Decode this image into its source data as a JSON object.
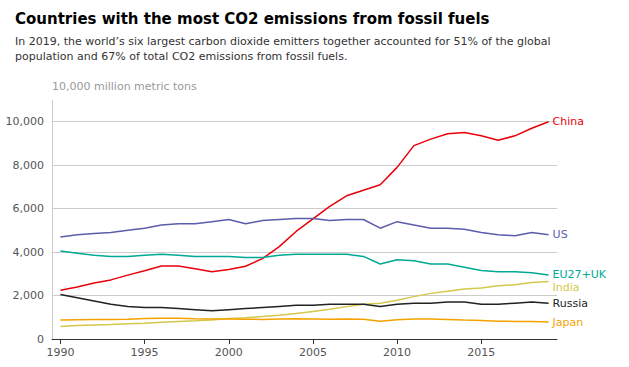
{
  "chart_data": {
    "type": "line",
    "title": "Countries with the most CO2 emissions from fossil fuels",
    "subtitle": "In 2019, the world’s six largest carbon dioxide emitters together accounted for 51% of the global\npopulation and 67% of total CO2 emissions from fossil fuels.",
    "ylabel": "10,000 million metric tons",
    "x": [
      1990,
      1991,
      1992,
      1993,
      1994,
      1995,
      1996,
      1997,
      1998,
      1999,
      2000,
      2001,
      2002,
      2003,
      2004,
      2005,
      2006,
      2007,
      2008,
      2009,
      2010,
      2011,
      2012,
      2013,
      2014,
      2015,
      2016,
      2017,
      2018,
      2019
    ],
    "series": [
      {
        "name": "China",
        "color": "#e8000b",
        "values": [
          2244,
          2390,
          2580,
          2720,
          2940,
          3140,
          3360,
          3360,
          3230,
          3100,
          3200,
          3350,
          3700,
          4250,
          4950,
          5530,
          6100,
          6590,
          6850,
          7100,
          7900,
          8900,
          9200,
          9450,
          9500,
          9350,
          9150,
          9350,
          9700,
          10000
        ]
      },
      {
        "name": "US",
        "color": "#5c5cad",
        "values": [
          4700,
          4800,
          4850,
          4900,
          5000,
          5100,
          5250,
          5300,
          5300,
          5400,
          5500,
          5300,
          5450,
          5500,
          5550,
          5550,
          5450,
          5500,
          5500,
          5100,
          5400,
          5250,
          5100,
          5100,
          5050,
          4900,
          4800,
          4750,
          4900,
          4800
        ]
      },
      {
        "name": "EU27+UK",
        "color": "#00a896",
        "values": [
          4050,
          3950,
          3850,
          3800,
          3800,
          3850,
          3900,
          3850,
          3800,
          3800,
          3800,
          3750,
          3750,
          3850,
          3900,
          3900,
          3900,
          3900,
          3800,
          3450,
          3650,
          3600,
          3450,
          3450,
          3300,
          3150,
          3100,
          3100,
          3050,
          2950
        ]
      },
      {
        "name": "India",
        "color": "#d4c84a",
        "values": [
          580,
          620,
          650,
          670,
          700,
          730,
          770,
          810,
          840,
          880,
          940,
          980,
          1030,
          1090,
          1170,
          1270,
          1370,
          1490,
          1600,
          1650,
          1780,
          1950,
          2100,
          2200,
          2300,
          2350,
          2450,
          2500,
          2600,
          2650
        ]
      },
      {
        "name": "Russia",
        "color": "#222222",
        "values": [
          2050,
          1900,
          1750,
          1600,
          1500,
          1450,
          1450,
          1400,
          1350,
          1300,
          1350,
          1400,
          1450,
          1500,
          1550,
          1550,
          1600,
          1600,
          1600,
          1500,
          1600,
          1650,
          1650,
          1700,
          1700,
          1600,
          1600,
          1650,
          1700,
          1650
        ]
      },
      {
        "name": "Japan",
        "color": "#f4a200",
        "values": [
          870,
          890,
          900,
          900,
          910,
          940,
          950,
          960,
          930,
          920,
          920,
          910,
          900,
          920,
          930,
          920,
          910,
          920,
          910,
          820,
          890,
          920,
          920,
          900,
          870,
          850,
          820,
          810,
          800,
          780
        ]
      }
    ],
    "xlim": [
      1989.5,
      2019.5
    ],
    "xticks": [
      1990,
      1995,
      2000,
      2005,
      2010,
      2015
    ],
    "ylim": [
      0,
      11000
    ],
    "yticks": [
      0,
      {
        "value": 2000,
        "label": "2,000"
      },
      {
        "value": 4000,
        "label": "4,000"
      },
      {
        "value": 6000,
        "label": "6,000"
      },
      {
        "value": 8000,
        "label": "8,000"
      },
      {
        "value": 10000,
        "label": "10,000"
      }
    ],
    "grid": true
  }
}
